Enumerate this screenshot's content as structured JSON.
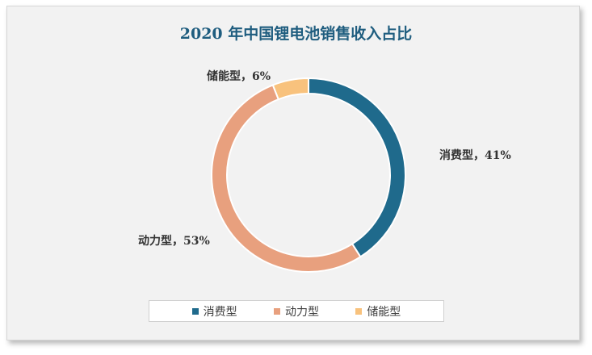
{
  "chart_data": {
    "type": "pie",
    "title": "2020 年中国锂电池销售收入占比",
    "donut": true,
    "slices": [
      {
        "name": "消费型",
        "value": 41,
        "label": "消费型，41%",
        "color": "#1f6a8c"
      },
      {
        "name": "动力型",
        "value": 53,
        "label": "动力型，53%",
        "color": "#e8a07e"
      },
      {
        "name": "储能型",
        "value": 6,
        "label": "储能型，6%",
        "color": "#f8c27d"
      }
    ],
    "legend": {
      "placement": "bottom",
      "entries": [
        "消费型",
        "动力型",
        "储能型"
      ]
    }
  }
}
